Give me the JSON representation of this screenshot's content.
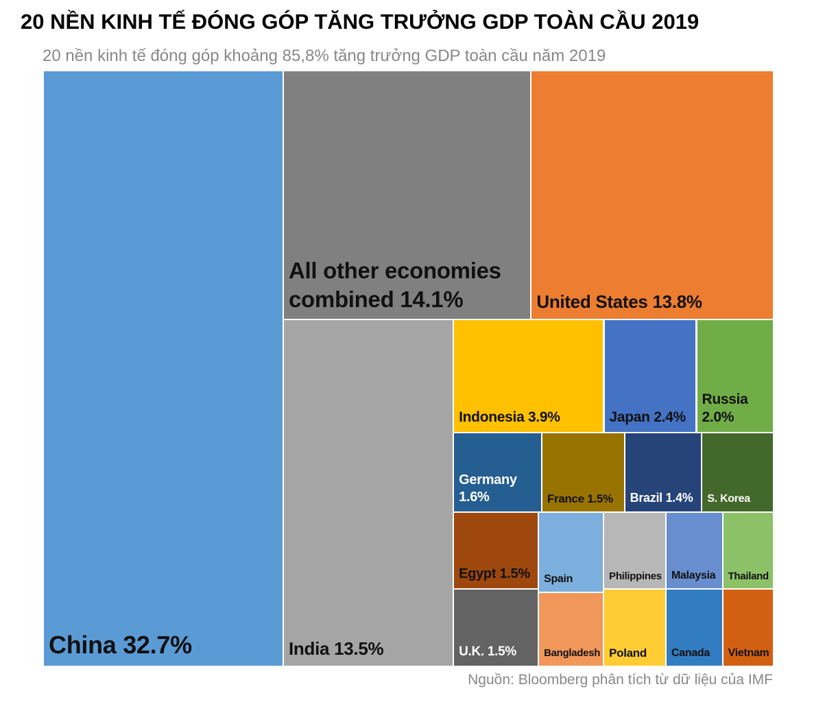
{
  "chart_data": {
    "type": "treemap",
    "title": "20 NỀN KINH TẾ ĐÓNG GÓP TĂNG TRƯỞNG GDP TOÀN CẦU 2019",
    "subtitle": "20 nền kinh tế đóng góp khoảng 85,8% tăng trưởng GDP toàn cầu năm 2019",
    "source": "Nguồn: Bloomberg phân tích từ dữ liệu của IMF",
    "items": [
      {
        "label": "China 32.7%",
        "value": 32.7,
        "color": "#5b9bd5"
      },
      {
        "label": "All other economies combined 14.1%",
        "value": 14.1,
        "color": "#808080"
      },
      {
        "label": "United States 13.8%",
        "value": 13.8,
        "color": "#ed7d31"
      },
      {
        "label": "India 13.5%",
        "value": 13.5,
        "color": "#a5a5a5"
      },
      {
        "label": "Indonesia 3.9%",
        "value": 3.9,
        "color": "#ffc000"
      },
      {
        "label": "Japan 2.4%",
        "value": 2.4,
        "color": "#4472c4"
      },
      {
        "label": "Russia 2.0%",
        "value": 2.0,
        "color": "#70ad47"
      },
      {
        "label": "Germany 1.6%",
        "value": 1.6,
        "color": "#255e91"
      },
      {
        "label": "France 1.5%",
        "value": 1.5,
        "color": "#997300"
      },
      {
        "label": "Brazil 1.4%",
        "value": 1.4,
        "color": "#264478"
      },
      {
        "label": "S. Korea",
        "value": 1.3,
        "color": "#43682b"
      },
      {
        "label": "Egypt 1.5%",
        "value": 1.5,
        "color": "#9e480e"
      },
      {
        "label": "U.K. 1.5%",
        "value": 1.5,
        "color": "#636363"
      },
      {
        "label": "Spain",
        "value": 1.2,
        "color": "#7cafdd"
      },
      {
        "label": "Bangladesh",
        "value": 1.1,
        "color": "#f1975a"
      },
      {
        "label": "Philippines",
        "value": 1.1,
        "color": "#b7b7b7"
      },
      {
        "label": "Poland",
        "value": 1.1,
        "color": "#ffcd33"
      },
      {
        "label": "Malaysia",
        "value": 1.0,
        "color": "#698ed0"
      },
      {
        "label": "Canada",
        "value": 1.0,
        "color": "#327dc2"
      },
      {
        "label": "Thailand",
        "value": 0.9,
        "color": "#8cc168"
      },
      {
        "label": "Vietnam",
        "value": 0.9,
        "color": "#d26012"
      }
    ]
  }
}
